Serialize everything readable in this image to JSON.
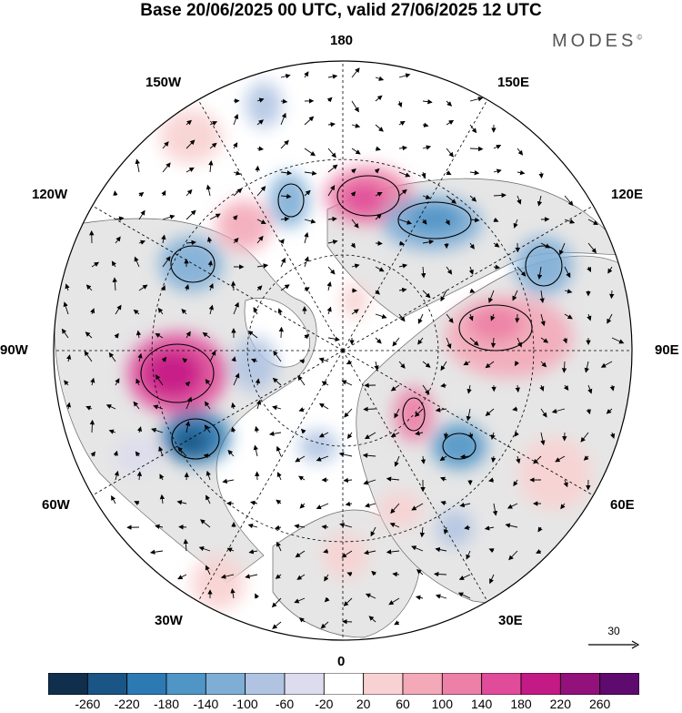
{
  "title": "Base 20/06/2025 00 UTC, valid 27/06/2025 12 UTC",
  "brand": "MODES",
  "brand_mark": "©",
  "longitude_labels": {
    "l180": "180",
    "l150e": "150E",
    "l120e": "120E",
    "l90e": "90E",
    "l60e": "60E",
    "l30e": "30E",
    "l0": "0",
    "l30w": "30W",
    "l60w": "60W",
    "l90w": "90W",
    "l120w": "120W",
    "l150w": "150W"
  },
  "vector_reference": {
    "value": "30",
    "icon": "arrow-right-icon"
  },
  "colorbar": {
    "ticks": [
      "-260",
      "-220",
      "-180",
      "-140",
      "-100",
      "-60",
      "-20",
      "20",
      "60",
      "100",
      "140",
      "180",
      "220",
      "260"
    ],
    "colors": [
      "#102f4c",
      "#1a5585",
      "#2d79b3",
      "#4f95c6",
      "#7eaed6",
      "#b0c4e2",
      "#dcdcee",
      "#ffffff",
      "#f8d2d2",
      "#f3a9b8",
      "#ec80a6",
      "#e04c9a",
      "#c41a85",
      "#92117a",
      "#5e0a6e"
    ]
  },
  "colors": {
    "land": "#e6e6e6",
    "ocean": "#ffffff",
    "grid": "#000000",
    "coast": "#666666"
  }
}
